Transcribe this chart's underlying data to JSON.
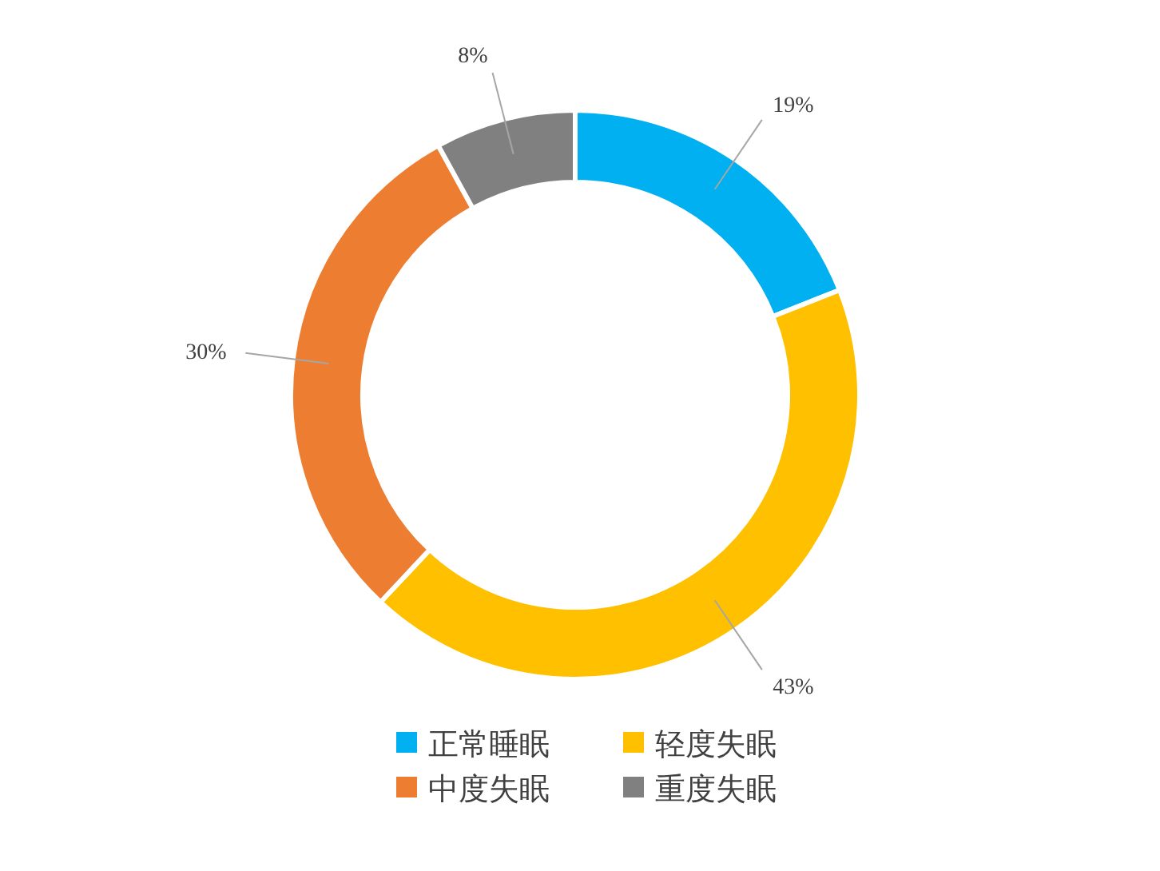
{
  "chart_data": {
    "type": "donut",
    "categories": [
      "正常睡眠",
      "轻度失眠",
      "中度失眠",
      "重度失眠"
    ],
    "values": [
      19,
      43,
      30,
      8
    ],
    "colors": [
      "#00b0f0",
      "#ffc000",
      "#ed7d31",
      "#808080"
    ],
    "value_labels": [
      "19%",
      "43%",
      "30%",
      "8%"
    ],
    "legend": "bottom"
  }
}
